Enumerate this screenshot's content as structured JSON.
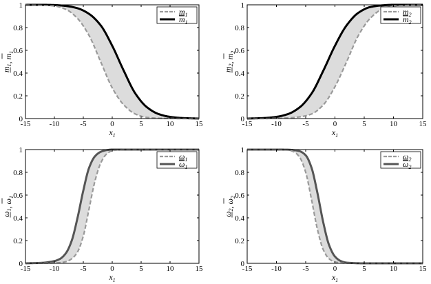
{
  "chart_data": [
    {
      "type": "line",
      "xlim": [
        -15,
        15
      ],
      "ylim": [
        0,
        1
      ],
      "xticks": [
        -15,
        -10,
        -5,
        0,
        5,
        10,
        15
      ],
      "yticks": [
        0,
        0.2,
        0.4,
        0.6,
        0.8,
        1
      ],
      "ytick_labels": [
        "0",
        "0.2",
        "0.4",
        "0.6",
        "0.8",
        "1"
      ],
      "xlabel": {
        "main": "x",
        "sub": "1"
      },
      "ylabel": {
        "parts": [
          {
            "main": "m",
            "sub": "1",
            "bar": "under"
          },
          {
            "main": ", ",
            "sub": ""
          },
          {
            "main": "m",
            "sub": "1",
            "bar": "over"
          }
        ]
      },
      "legend_position": "top-right",
      "band_color": "#dcdcdc",
      "series": [
        {
          "name": {
            "main": "m",
            "sub": "1",
            "bar": "under"
          },
          "style": "dashed",
          "color": "#9a9a9a",
          "x": [
            -15,
            -12,
            -10,
            -8,
            -6,
            -4,
            -2,
            0,
            2,
            4,
            6,
            8,
            10,
            12,
            15
          ],
          "y": [
            1.0,
            0.997,
            0.99,
            0.96,
            0.88,
            0.73,
            0.5,
            0.27,
            0.12,
            0.04,
            0.01,
            0.003,
            0.001,
            0.0,
            0.0
          ]
        },
        {
          "name": {
            "main": "m",
            "sub": "1",
            "bar": "over"
          },
          "style": "solid",
          "color": "#000000",
          "x": [
            -15,
            -12,
            -10,
            -8,
            -6,
            -4,
            -2,
            0,
            2,
            4,
            6,
            8,
            10,
            12,
            15
          ],
          "y": [
            1.0,
            1.0,
            0.998,
            0.99,
            0.97,
            0.92,
            0.82,
            0.64,
            0.42,
            0.22,
            0.1,
            0.04,
            0.015,
            0.005,
            0.0
          ]
        }
      ]
    },
    {
      "type": "line",
      "xlim": [
        -15,
        15
      ],
      "ylim": [
        0,
        1
      ],
      "xticks": [
        -15,
        -10,
        -5,
        0,
        5,
        10,
        15
      ],
      "yticks": [
        0,
        0.2,
        0.4,
        0.6,
        0.8,
        1
      ],
      "ytick_labels": [
        "0",
        "0.2",
        "0.4",
        "0.6",
        "0.8",
        "1"
      ],
      "xlabel": {
        "main": "x",
        "sub": "1"
      },
      "ylabel": {
        "parts": [
          {
            "main": "m",
            "sub": "2",
            "bar": "under"
          },
          {
            "main": ", ",
            "sub": ""
          },
          {
            "main": "m",
            "sub": "2",
            "bar": "over"
          }
        ]
      },
      "legend_position": "top-right",
      "band_color": "#dcdcdc",
      "series": [
        {
          "name": {
            "main": "m",
            "sub": "2",
            "bar": "under"
          },
          "style": "dashed",
          "color": "#9a9a9a",
          "x": [
            -15,
            -12,
            -10,
            -8,
            -6,
            -4,
            -2,
            0,
            2,
            4,
            6,
            8,
            10,
            12,
            15
          ],
          "y": [
            0.0,
            0.0,
            0.002,
            0.006,
            0.015,
            0.04,
            0.12,
            0.28,
            0.5,
            0.73,
            0.88,
            0.96,
            0.99,
            0.997,
            1.0
          ]
        },
        {
          "name": {
            "main": "m",
            "sub": "2",
            "bar": "over"
          },
          "style": "solid",
          "color": "#000000",
          "x": [
            -15,
            -12,
            -10,
            -8,
            -6,
            -4,
            -2,
            0,
            2,
            4,
            6,
            8,
            10,
            12,
            15
          ],
          "y": [
            0.0,
            0.005,
            0.015,
            0.04,
            0.1,
            0.22,
            0.42,
            0.64,
            0.82,
            0.93,
            0.98,
            0.995,
            1.0,
            1.0,
            1.0
          ]
        }
      ]
    },
    {
      "type": "line",
      "xlim": [
        -15,
        15
      ],
      "ylim": [
        0,
        1
      ],
      "xticks": [
        -15,
        -10,
        -5,
        0,
        5,
        10,
        15
      ],
      "yticks": [
        0,
        0.2,
        0.4,
        0.6,
        0.8,
        1
      ],
      "ytick_labels": [
        "0",
        "0.2",
        "0.4",
        "0.6",
        "0.8",
        "1"
      ],
      "xlabel": {
        "main": "x",
        "sub": "1"
      },
      "ylabel": {
        "parts": [
          {
            "main": "ω",
            "sub": "1",
            "bar": "under"
          },
          {
            "main": ", ",
            "sub": ""
          },
          {
            "main": "ω",
            "sub": "1",
            "bar": "over"
          }
        ]
      },
      "legend_position": "top-right",
      "band_color": "#dcdcdc",
      "series": [
        {
          "name": {
            "main": "ω",
            "sub": "1",
            "bar": "under"
          },
          "style": "dashed",
          "color": "#9a9a9a",
          "x": [
            -15,
            -12,
            -10,
            -9,
            -8,
            -7,
            -6,
            -5,
            -4,
            -3,
            -2,
            -1,
            0,
            2,
            5,
            10,
            15
          ],
          "y": [
            0.0,
            0.001,
            0.003,
            0.006,
            0.015,
            0.04,
            0.1,
            0.24,
            0.48,
            0.72,
            0.88,
            0.96,
            0.99,
            1.0,
            1.0,
            1.0,
            1.0
          ]
        },
        {
          "name": {
            "main": "ω",
            "sub": "1",
            "bar": "over"
          },
          "style": "solid",
          "color": "#555555",
          "x": [
            -15,
            -12,
            -10,
            -9,
            -8,
            -7,
            -6,
            -5,
            -4,
            -3,
            -2,
            -1,
            0,
            2,
            5,
            10,
            15
          ],
          "y": [
            0.0,
            0.005,
            0.02,
            0.04,
            0.09,
            0.2,
            0.4,
            0.64,
            0.84,
            0.94,
            0.98,
            0.995,
            1.0,
            1.0,
            1.0,
            1.0,
            1.0
          ]
        }
      ]
    },
    {
      "type": "line",
      "xlim": [
        -15,
        15
      ],
      "ylim": [
        0,
        1
      ],
      "xticks": [
        -15,
        -10,
        -5,
        0,
        5,
        10,
        15
      ],
      "yticks": [
        0,
        0.2,
        0.4,
        0.6,
        0.8,
        1
      ],
      "ytick_labels": [
        "0",
        "0.2",
        "0.4",
        "0.6",
        "0.8",
        "1"
      ],
      "xlabel": {
        "main": "x",
        "sub": "1"
      },
      "ylabel": {
        "parts": [
          {
            "main": "ω",
            "sub": "2",
            "bar": "under"
          },
          {
            "main": ", ",
            "sub": ""
          },
          {
            "main": "ω",
            "sub": "2",
            "bar": "over"
          }
        ]
      },
      "legend_position": "top-right",
      "band_color": "#dcdcdc",
      "series": [
        {
          "name": {
            "main": "ω",
            "sub": "2",
            "bar": "under"
          },
          "style": "dashed",
          "color": "#9a9a9a",
          "x": [
            -15,
            -10,
            -8,
            -7,
            -6,
            -5,
            -4,
            -3,
            -2,
            -1,
            0,
            1,
            2,
            5,
            10,
            15
          ],
          "y": [
            1.0,
            1.0,
            0.995,
            0.98,
            0.93,
            0.8,
            0.56,
            0.3,
            0.12,
            0.04,
            0.012,
            0.004,
            0.001,
            0.0,
            0.0,
            0.0
          ]
        },
        {
          "name": {
            "main": "ω",
            "sub": "2",
            "bar": "over"
          },
          "style": "solid",
          "color": "#555555",
          "x": [
            -15,
            -10,
            -8,
            -7,
            -6,
            -5,
            -4,
            -3,
            -2,
            -1,
            0,
            1,
            2,
            5,
            10,
            15
          ],
          "y": [
            1.0,
            1.0,
            0.999,
            0.995,
            0.985,
            0.95,
            0.84,
            0.62,
            0.36,
            0.16,
            0.06,
            0.02,
            0.006,
            0.0,
            0.0,
            0.0
          ]
        }
      ]
    }
  ]
}
